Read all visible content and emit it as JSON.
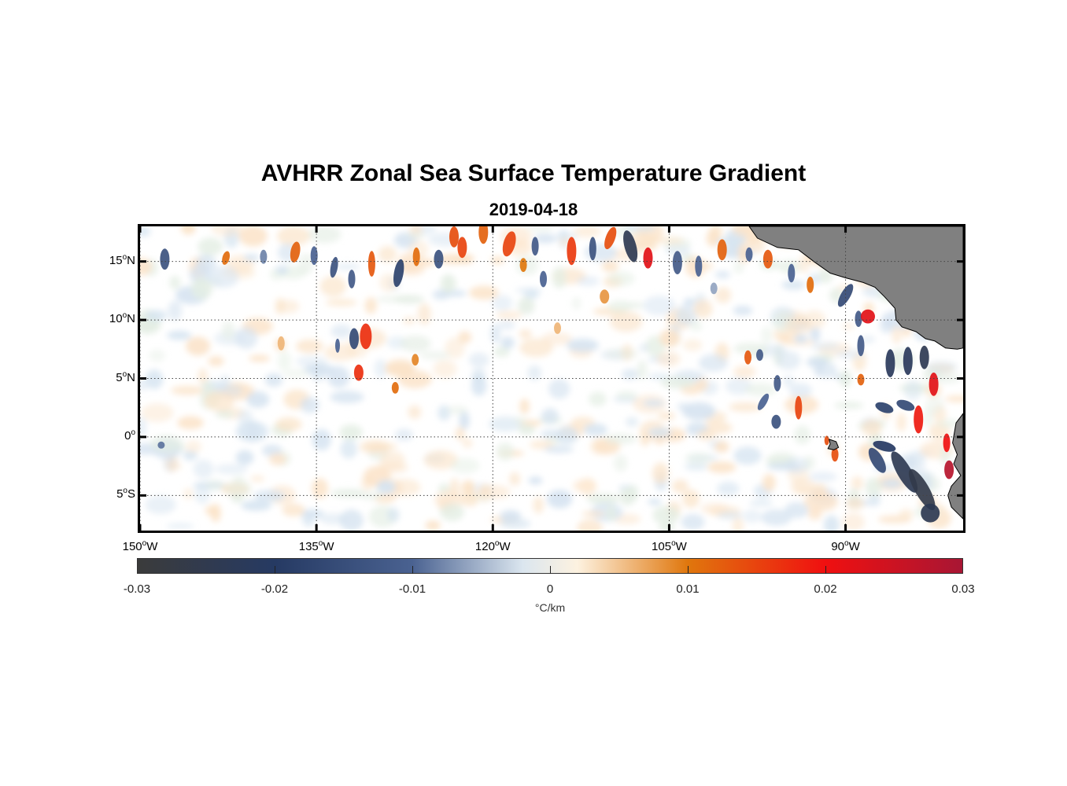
{
  "title": "AVHRR Zonal Sea Surface Temperature Gradient",
  "subtitle": "2019-04-18",
  "map": {
    "lon_range": [
      -150,
      -80
    ],
    "lat_range": [
      -8,
      18
    ],
    "y_ticks": [
      {
        "lat": 15,
        "num": "15",
        "hemi": "N"
      },
      {
        "lat": 10,
        "num": "10",
        "hemi": "N"
      },
      {
        "lat": 5,
        "num": "5",
        "hemi": "N"
      },
      {
        "lat": 0,
        "num": "0",
        "hemi": ""
      },
      {
        "lat": -5,
        "num": "5",
        "hemi": "S"
      }
    ],
    "x_ticks": [
      {
        "lon": -150,
        "num": "150",
        "hemi": "W"
      },
      {
        "lon": -135,
        "num": "135",
        "hemi": "W"
      },
      {
        "lon": -120,
        "num": "120",
        "hemi": "W"
      },
      {
        "lon": -105,
        "num": "105",
        "hemi": "W"
      },
      {
        "lon": -90,
        "num": "90",
        "hemi": "W"
      }
    ],
    "land_color": "#808080",
    "grid": "dotted"
  },
  "colorbar": {
    "min": -0.03,
    "max": 0.03,
    "tick_values": [
      -0.03,
      -0.02,
      -0.01,
      0,
      0.01,
      0.02,
      0.03
    ],
    "ticks": [
      "-0.03",
      "-0.02",
      "-0.01",
      "0",
      "0.01",
      "0.02",
      "0.03"
    ],
    "units": "°C/km",
    "colors": [
      "#3b3b3b",
      "#263a63",
      "#4a6291",
      "#dbe6ef",
      "#fdf2e0",
      "#e0770d",
      "#f01010",
      "#a81634"
    ]
  }
}
